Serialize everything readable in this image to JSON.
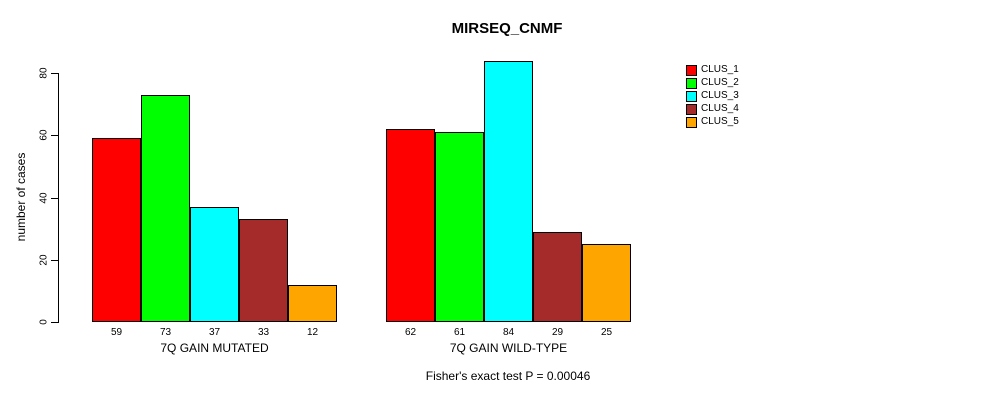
{
  "chart_data": {
    "type": "bar",
    "title": "MIRSEQ_CNMF",
    "ylabel": "number of cases",
    "categories": [
      "7Q GAIN MUTATED",
      "7Q GAIN WILD-TYPE"
    ],
    "series": [
      {
        "name": "CLUS_1",
        "color": "#FF0000",
        "values": [
          59,
          62
        ]
      },
      {
        "name": "CLUS_2",
        "color": "#00FF00",
        "values": [
          73,
          61
        ]
      },
      {
        "name": "CLUS_3",
        "color": "#00FFFF",
        "values": [
          37,
          84
        ]
      },
      {
        "name": "CLUS_4",
        "color": "#A52A2A",
        "values": [
          33,
          29
        ]
      },
      {
        "name": "CLUS_5",
        "color": "#FFA500",
        "values": [
          12,
          25
        ]
      }
    ],
    "yticks": [
      0,
      20,
      40,
      60,
      80
    ],
    "ylim": [
      0,
      84
    ],
    "grid": false,
    "bar_border_color": "#000000",
    "legend_position": "top-right",
    "annotation": "Fisher's exact test P = 0.00046"
  }
}
